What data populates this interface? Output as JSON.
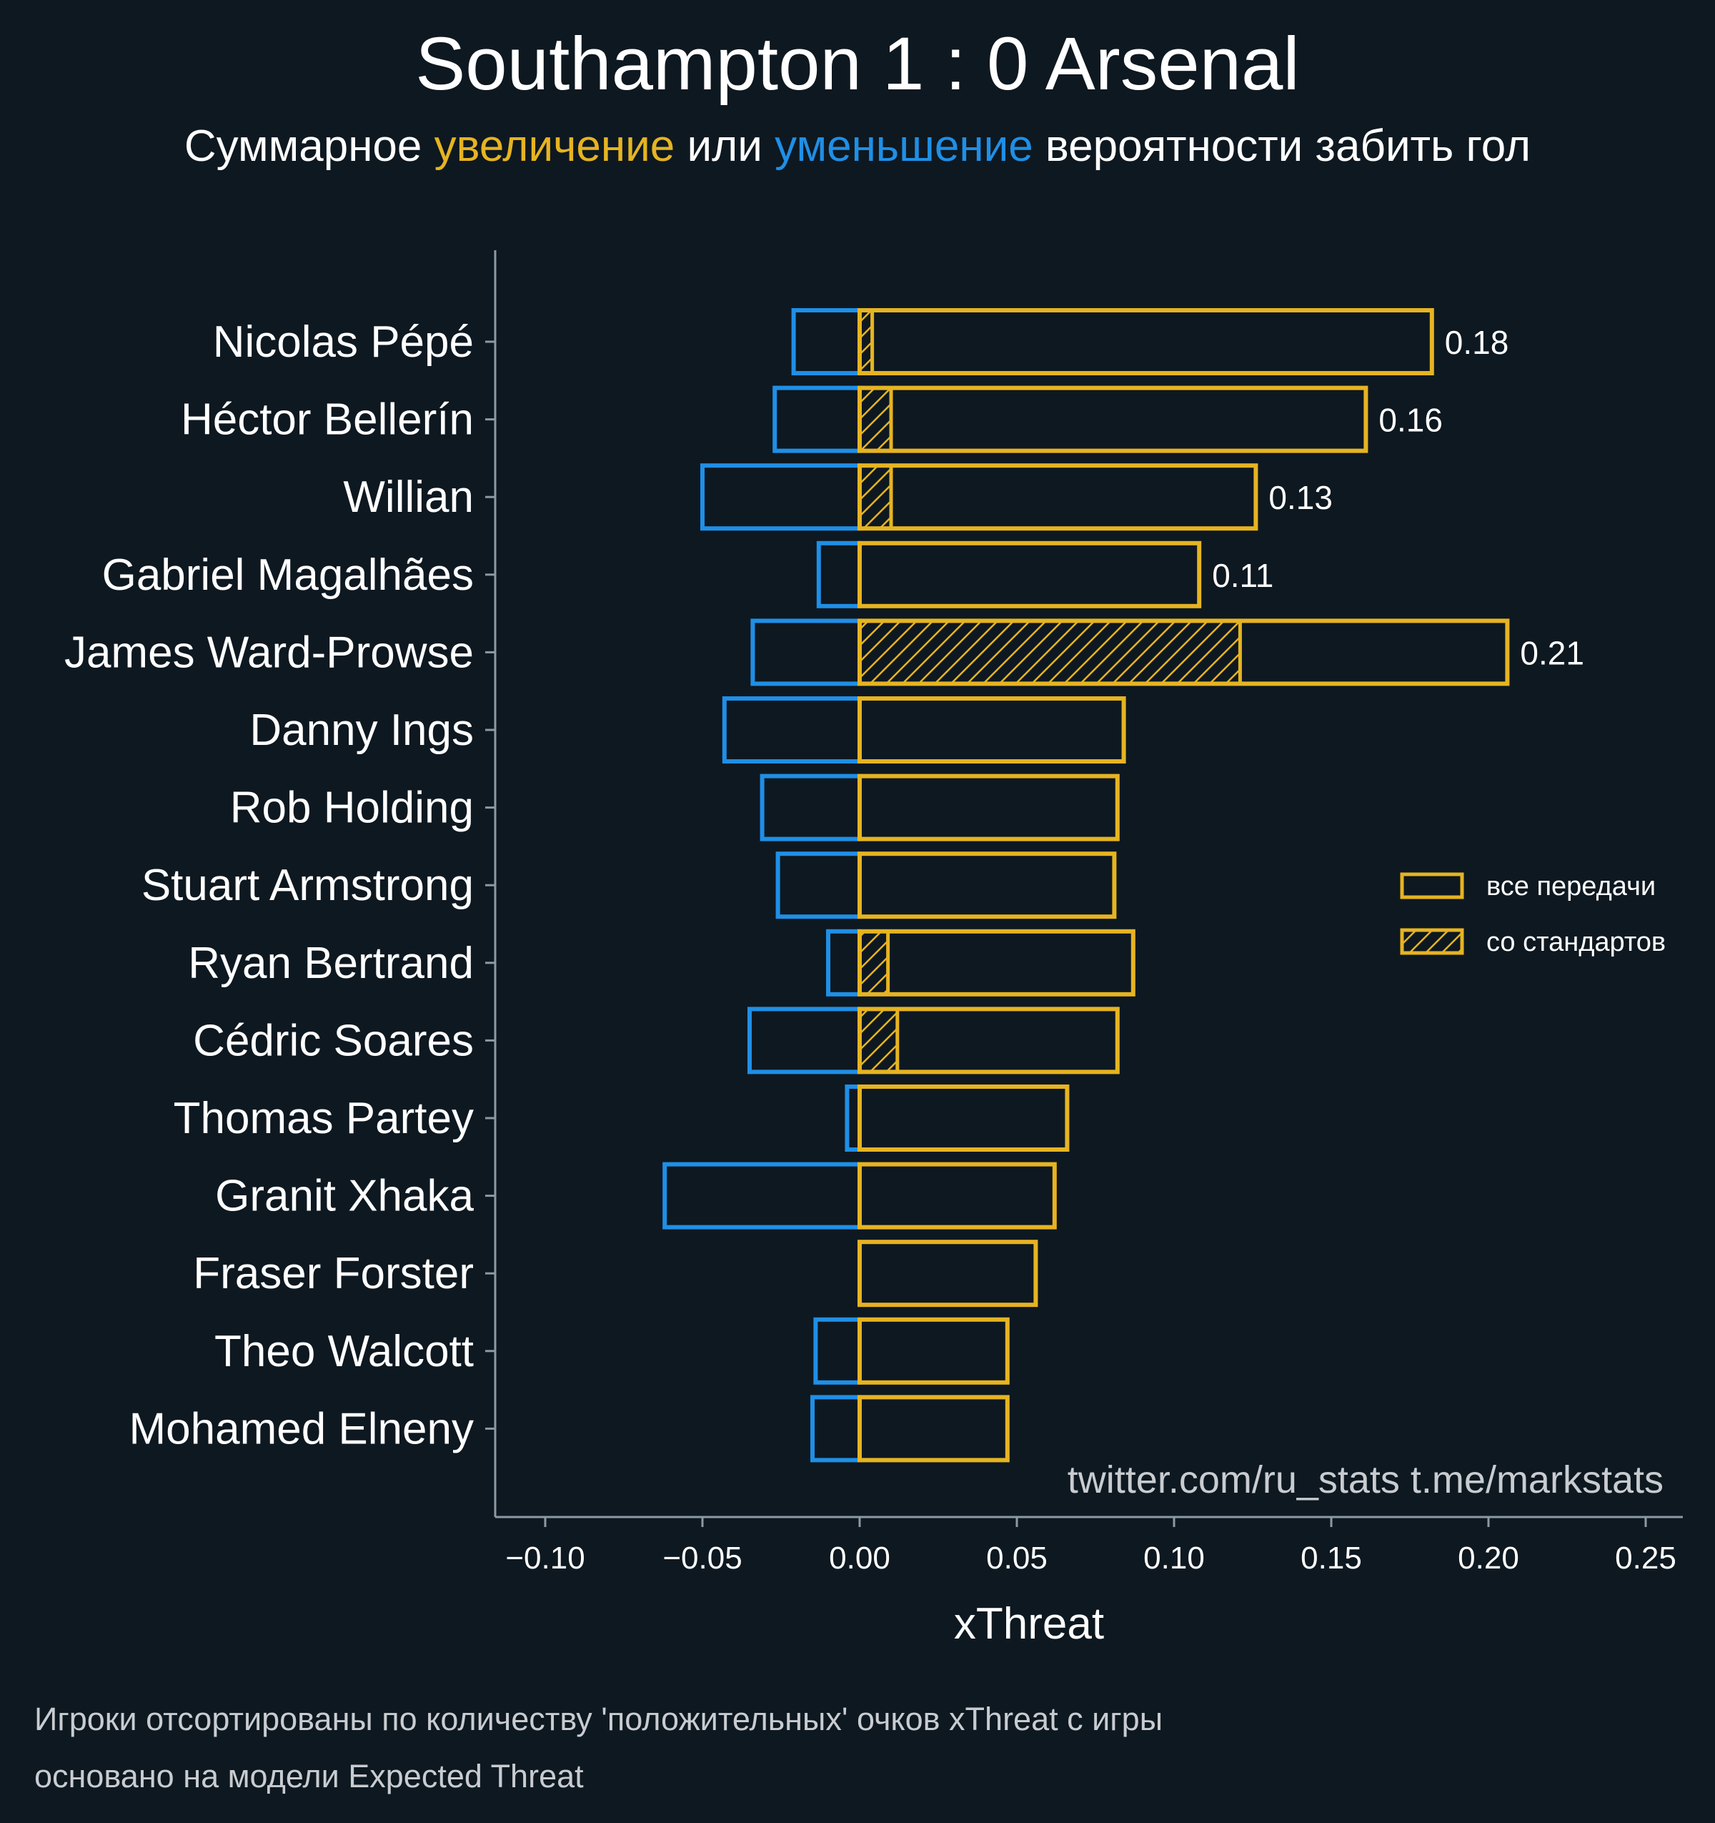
{
  "title": "Southampton 1 : 0 Arsenal",
  "subtitle": {
    "before": "Суммарное ",
    "increase": "увеличение",
    "middle": " или ",
    "decrease": "уменьшение",
    "after": " вероятности забить гол"
  },
  "colors": {
    "background": "#0e1820",
    "increase": "#e6b422",
    "decrease": "#1f8fe6",
    "axis": "#8a9aa6",
    "text": "#ffffff"
  },
  "watermark": "twitter.com/ru_stats  t.me/markstats",
  "footnotes": [
    "Игроки отсортированы по количеству 'положительных' очков xThreat с игры",
    "основано на модели Expected Threat"
  ],
  "chart_data": {
    "type": "bar",
    "orientation": "horizontal",
    "xlabel": "xThreat",
    "ylabel": "",
    "xlim": [
      -0.115,
      0.26
    ],
    "xticks": [
      -0.1,
      -0.05,
      0.0,
      0.05,
      0.1,
      0.15,
      0.2,
      0.25
    ],
    "xtick_labels": [
      "−0.10",
      "−0.05",
      "0.00",
      "0.05",
      "0.10",
      "0.15",
      "0.20",
      "0.25"
    ],
    "legend": {
      "position": "right",
      "entries": [
        {
          "label": "все передачи",
          "style": "outline"
        },
        {
          "label": "со стандартов",
          "style": "hatched"
        }
      ]
    },
    "categories": [
      "Nicolas Pépé",
      "Héctor Bellerín",
      "Willian",
      "Gabriel Magalhães",
      "James Ward-Prowse",
      "Danny Ings",
      "Rob Holding",
      "Stuart Armstrong",
      "Ryan Bertrand",
      "Cédric Soares",
      "Thomas Partey",
      "Granit Xhaka",
      "Fraser Forster",
      "Theo Walcott",
      "Mohamed Elneny"
    ],
    "series": [
      {
        "name": "все передачи (положительные)",
        "values": [
          0.182,
          0.161,
          0.126,
          0.108,
          0.206,
          0.084,
          0.082,
          0.081,
          0.087,
          0.082,
          0.066,
          0.062,
          0.056,
          0.047,
          0.047
        ]
      },
      {
        "name": "все передачи (отрицательные)",
        "values": [
          -0.021,
          -0.027,
          -0.05,
          -0.013,
          -0.034,
          -0.043,
          -0.031,
          -0.026,
          -0.01,
          -0.035,
          -0.004,
          -0.062,
          0.0,
          -0.014,
          -0.015
        ]
      },
      {
        "name": "со стандартов",
        "values": [
          0.004,
          0.01,
          0.01,
          0.0,
          0.121,
          0.0,
          0.0,
          0.0,
          0.009,
          0.012,
          0.0,
          0.0,
          0.0,
          0.0,
          0.0
        ]
      }
    ],
    "data_labels": [
      "0.18",
      "0.16",
      "0.13",
      "0.11",
      "0.21",
      "",
      "",
      "",
      "",
      "",
      "",
      "",
      "",
      "",
      ""
    ]
  }
}
